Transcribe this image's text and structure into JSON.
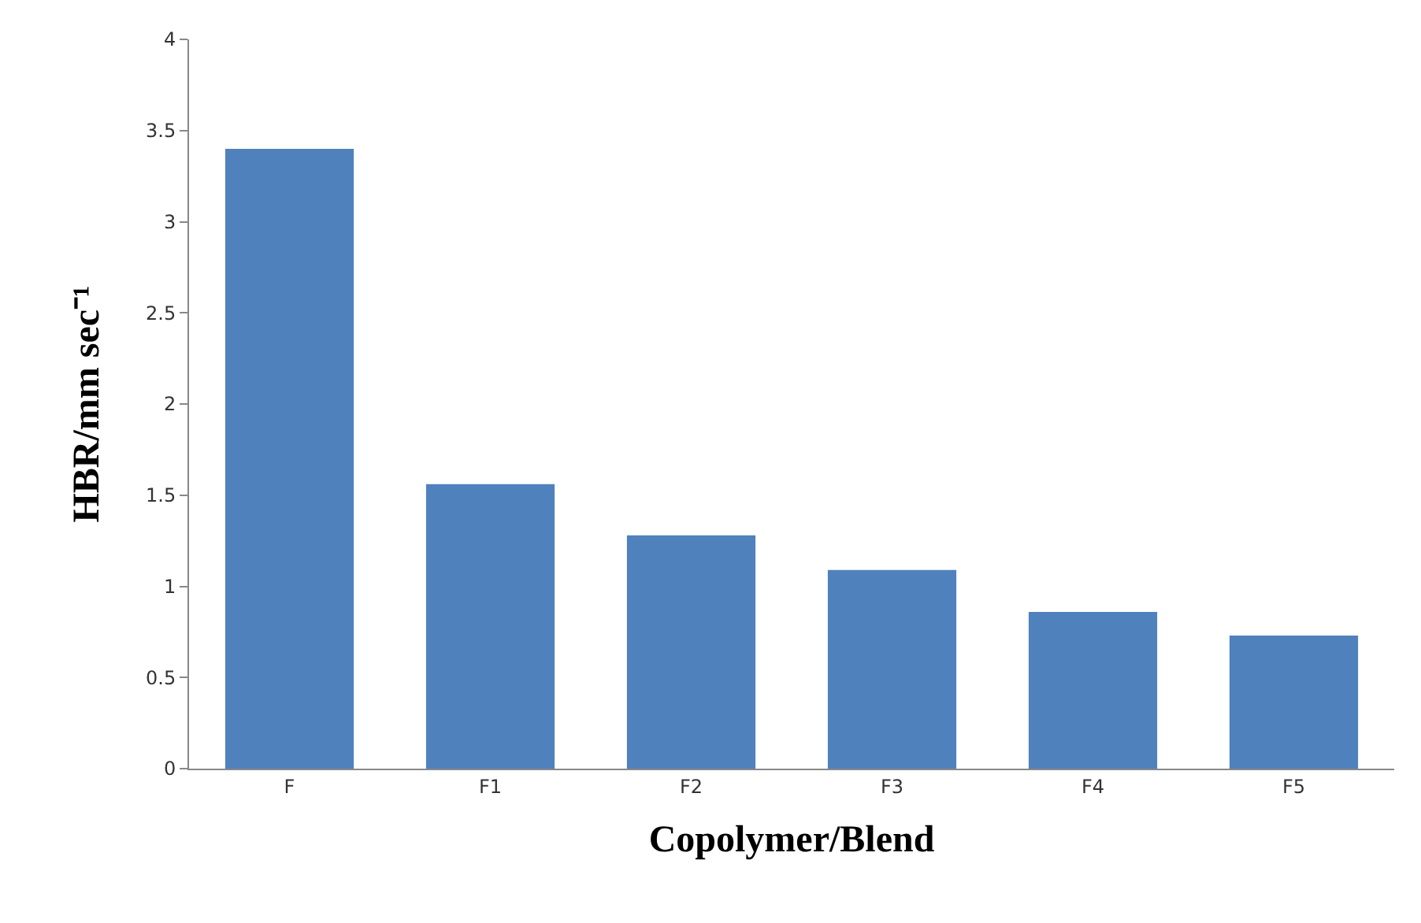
{
  "chart_data": {
    "type": "bar",
    "xlabel": "Copolymer/Blend",
    "ylabel": "HBR/mm sec⁻¹",
    "categories": [
      "F",
      "F1",
      "F2",
      "F3",
      "F4",
      "F5"
    ],
    "values": [
      3.4,
      1.56,
      1.28,
      1.09,
      0.86,
      0.73
    ],
    "color": "#4f81bd",
    "ylim": [
      0,
      4
    ],
    "yticks": [
      0,
      0.5,
      1,
      1.5,
      2,
      2.5,
      3,
      3.5,
      4
    ],
    "grid": false
  }
}
